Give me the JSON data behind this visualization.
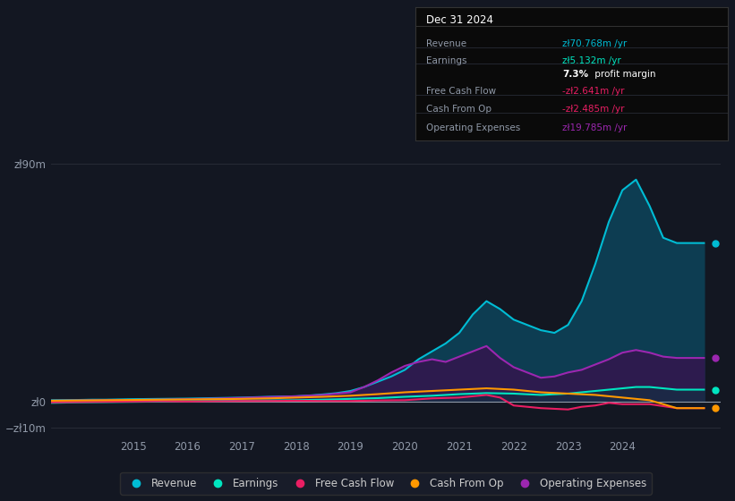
{
  "bg_color": "#131722",
  "chart_bg": "#131722",
  "ylim": [
    -13,
    97
  ],
  "xlim": [
    2013.5,
    2025.8
  ],
  "x_ticks": [
    2015,
    2016,
    2017,
    2018,
    2019,
    2020,
    2021,
    2022,
    2023,
    2024
  ],
  "legend_items": [
    "Revenue",
    "Earnings",
    "Free Cash Flow",
    "Cash From Op",
    "Operating Expenses"
  ],
  "legend_colors": [
    "#00bcd4",
    "#00e5c0",
    "#e91e63",
    "#ff9800",
    "#9c27b0"
  ],
  "tooltip_title": "Dec 31 2024",
  "tooltip_rows": [
    {
      "label": "Revenue",
      "value": "zł70.768m /yr",
      "value_color": "#00bcd4"
    },
    {
      "label": "Earnings",
      "value": "zł5.132m /yr",
      "value_color": "#00e5c0"
    },
    {
      "label": "",
      "value": "7.3% profit margin",
      "value_color": "#ffffff",
      "bold": "7.3%"
    },
    {
      "label": "Free Cash Flow",
      "value": "-zł2.641m /yr",
      "value_color": "#e91e63"
    },
    {
      "label": "Cash From Op",
      "value": "-zł2.485m /yr",
      "value_color": "#e91e63"
    },
    {
      "label": "Operating Expenses",
      "value": "zł19.785m /yr",
      "value_color": "#9c27b0"
    }
  ],
  "revenue": {
    "x": [
      2013.5,
      2014.0,
      2014.25,
      2014.5,
      2014.75,
      2015.0,
      2015.5,
      2016.0,
      2016.5,
      2017.0,
      2017.5,
      2018.0,
      2018.25,
      2018.5,
      2018.75,
      2019.0,
      2019.25,
      2019.5,
      2019.75,
      2020.0,
      2020.25,
      2020.5,
      2020.75,
      2021.0,
      2021.25,
      2021.5,
      2021.75,
      2022.0,
      2022.25,
      2022.5,
      2022.75,
      2023.0,
      2023.25,
      2023.5,
      2023.75,
      2024.0,
      2024.25,
      2024.5,
      2024.75,
      2025.0,
      2025.5
    ],
    "y": [
      0.5,
      0.6,
      0.7,
      0.7,
      0.8,
      0.9,
      1.0,
      1.1,
      1.3,
      1.5,
      1.8,
      2.0,
      2.3,
      2.7,
      3.2,
      4.0,
      5.5,
      7.5,
      9.5,
      12.0,
      16.0,
      19.0,
      22.0,
      26.0,
      33.0,
      38.0,
      35.0,
      31.0,
      29.0,
      27.0,
      26.0,
      29.0,
      38.0,
      52.0,
      68.0,
      80.0,
      84.0,
      74.0,
      62.0,
      60.0,
      60.0
    ]
  },
  "earnings": {
    "x": [
      2013.5,
      2014.0,
      2014.5,
      2015.0,
      2015.5,
      2016.0,
      2016.5,
      2017.0,
      2017.5,
      2018.0,
      2018.5,
      2019.0,
      2019.5,
      2020.0,
      2020.5,
      2021.0,
      2021.5,
      2022.0,
      2022.5,
      2023.0,
      2023.25,
      2023.5,
      2023.75,
      2024.0,
      2024.25,
      2024.5,
      2024.75,
      2025.0,
      2025.5
    ],
    "y": [
      -0.5,
      -0.3,
      -0.2,
      -0.1,
      0.0,
      0.1,
      0.2,
      0.3,
      0.4,
      0.5,
      0.7,
      1.0,
      1.3,
      1.8,
      2.2,
      2.8,
      3.2,
      3.0,
      2.5,
      3.0,
      3.5,
      4.0,
      4.5,
      5.0,
      5.5,
      5.5,
      5.0,
      4.5,
      4.5
    ]
  },
  "free_cash_flow": {
    "x": [
      2013.5,
      2014.0,
      2014.5,
      2015.0,
      2015.5,
      2016.0,
      2016.5,
      2017.0,
      2017.5,
      2018.0,
      2018.5,
      2019.0,
      2019.5,
      2020.0,
      2020.5,
      2021.0,
      2021.25,
      2021.5,
      2021.75,
      2022.0,
      2022.5,
      2023.0,
      2023.25,
      2023.5,
      2023.75,
      2024.0,
      2024.5,
      2025.0,
      2025.5
    ],
    "y": [
      -0.3,
      -0.2,
      -0.1,
      0.0,
      0.1,
      0.0,
      0.1,
      0.2,
      0.2,
      0.3,
      0.2,
      0.2,
      0.4,
      0.5,
      1.2,
      1.5,
      2.0,
      2.5,
      1.5,
      -1.5,
      -2.5,
      -3.0,
      -2.0,
      -1.5,
      -0.5,
      -1.0,
      -1.0,
      -2.5,
      -2.5
    ]
  },
  "cash_from_op": {
    "x": [
      2013.5,
      2014.0,
      2014.5,
      2015.0,
      2015.5,
      2016.0,
      2016.5,
      2017.0,
      2017.5,
      2018.0,
      2018.5,
      2019.0,
      2019.5,
      2020.0,
      2020.5,
      2021.0,
      2021.5,
      2022.0,
      2022.5,
      2023.0,
      2023.5,
      2024.0,
      2024.5,
      2025.0,
      2025.5
    ],
    "y": [
      0.3,
      0.4,
      0.5,
      0.6,
      0.7,
      0.8,
      0.9,
      1.0,
      1.2,
      1.5,
      1.8,
      2.2,
      2.8,
      3.5,
      4.0,
      4.5,
      5.0,
      4.5,
      3.5,
      3.0,
      2.5,
      1.5,
      0.5,
      -2.5,
      -2.5
    ]
  },
  "operating_expenses": {
    "x": [
      2013.5,
      2014.0,
      2014.5,
      2015.0,
      2015.5,
      2016.0,
      2016.5,
      2017.0,
      2017.5,
      2018.0,
      2018.5,
      2019.0,
      2019.25,
      2019.5,
      2019.75,
      2020.0,
      2020.25,
      2020.5,
      2020.75,
      2021.0,
      2021.25,
      2021.5,
      2021.75,
      2022.0,
      2022.25,
      2022.5,
      2022.75,
      2023.0,
      2023.25,
      2023.5,
      2023.75,
      2024.0,
      2024.25,
      2024.5,
      2024.75,
      2025.0,
      2025.5
    ],
    "y": [
      0.3,
      0.4,
      0.5,
      0.6,
      0.7,
      0.9,
      1.1,
      1.4,
      1.7,
      2.0,
      2.5,
      3.5,
      5.5,
      8.0,
      11.0,
      13.5,
      15.0,
      16.0,
      15.0,
      17.0,
      19.0,
      21.0,
      16.5,
      13.0,
      11.0,
      9.0,
      9.5,
      11.0,
      12.0,
      14.0,
      16.0,
      18.5,
      19.5,
      18.5,
      17.0,
      16.5,
      16.5
    ]
  }
}
